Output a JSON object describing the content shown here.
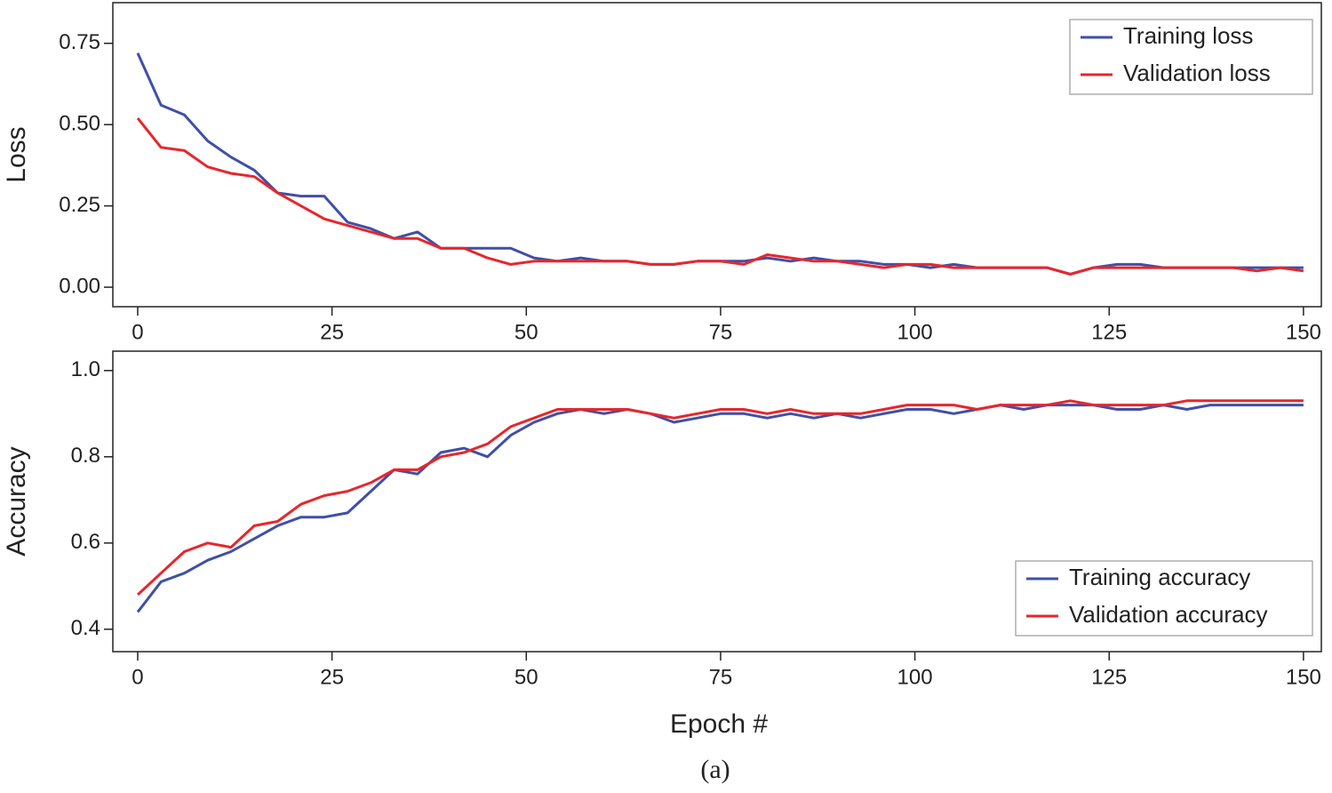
{
  "chart_data": [
    {
      "type": "line",
      "ylabel": "Loss",
      "legend": "upper right",
      "grid": false,
      "x": [
        0,
        3,
        6,
        9,
        12,
        15,
        18,
        21,
        24,
        27,
        30,
        33,
        36,
        39,
        42,
        45,
        48,
        51,
        54,
        57,
        60,
        63,
        66,
        69,
        72,
        75,
        78,
        81,
        84,
        87,
        90,
        93,
        96,
        99,
        102,
        105,
        108,
        111,
        114,
        117,
        120,
        123,
        126,
        129,
        132,
        135,
        138,
        141,
        144,
        147,
        150
      ],
      "xlim": [
        -3.2,
        152.3
      ],
      "xticks": [
        0,
        25,
        50,
        75,
        100,
        125,
        150
      ],
      "ylim": [
        -0.06,
        0.875
      ],
      "yticks": [
        {
          "value": 0,
          "label": "0.00"
        },
        0.25,
        {
          "value": 0.5,
          "label": "0.50"
        },
        0.75
      ],
      "series": [
        {
          "name": "Training loss",
          "color": "#3f4fa8",
          "values": [
            0.72,
            0.56,
            0.53,
            0.45,
            0.4,
            0.36,
            0.29,
            0.28,
            0.28,
            0.2,
            0.18,
            0.15,
            0.17,
            0.12,
            0.12,
            0.12,
            0.12,
            0.09,
            0.08,
            0.09,
            0.08,
            0.08,
            0.07,
            0.07,
            0.08,
            0.08,
            0.08,
            0.09,
            0.08,
            0.09,
            0.08,
            0.08,
            0.07,
            0.07,
            0.06,
            0.07,
            0.06,
            0.06,
            0.06,
            0.06,
            0.04,
            0.06,
            0.07,
            0.07,
            0.06,
            0.06,
            0.06,
            0.06,
            0.06,
            0.06,
            0.06
          ]
        },
        {
          "name": "Validation loss",
          "color": "#e8262b",
          "values": [
            0.52,
            0.43,
            0.42,
            0.37,
            0.35,
            0.34,
            0.29,
            0.25,
            0.21,
            0.19,
            0.17,
            0.15,
            0.15,
            0.12,
            0.12,
            0.09,
            0.07,
            0.08,
            0.08,
            0.08,
            0.08,
            0.08,
            0.07,
            0.07,
            0.08,
            0.08,
            0.07,
            0.1,
            0.09,
            0.08,
            0.08,
            0.07,
            0.06,
            0.07,
            0.07,
            0.06,
            0.06,
            0.06,
            0.06,
            0.06,
            0.04,
            0.06,
            0.06,
            0.06,
            0.06,
            0.06,
            0.06,
            0.06,
            0.05,
            0.06,
            0.05
          ]
        }
      ]
    },
    {
      "type": "line",
      "ylabel": "Accuracy",
      "xlabel": "Epoch #",
      "legend": "lower right",
      "grid": false,
      "x": [
        0,
        3,
        6,
        9,
        12,
        15,
        18,
        21,
        24,
        27,
        30,
        33,
        36,
        39,
        42,
        45,
        48,
        51,
        54,
        57,
        60,
        63,
        66,
        69,
        72,
        75,
        78,
        81,
        84,
        87,
        90,
        93,
        96,
        99,
        102,
        105,
        108,
        111,
        114,
        117,
        120,
        123,
        126,
        129,
        132,
        135,
        138,
        141,
        144,
        147,
        150
      ],
      "xlim": [
        -3.2,
        152.3
      ],
      "xticks": [
        0,
        25,
        50,
        75,
        100,
        125,
        150
      ],
      "ylim": [
        0.348,
        1.045
      ],
      "yticks": [
        0.4,
        0.6,
        0.8,
        {
          "value": 1,
          "label": "1.0"
        }
      ],
      "series": [
        {
          "name": "Training accuracy",
          "color": "#3f4fa8",
          "values": [
            0.44,
            0.51,
            0.53,
            0.56,
            0.58,
            0.61,
            0.64,
            0.66,
            0.66,
            0.67,
            0.72,
            0.77,
            0.76,
            0.81,
            0.82,
            0.8,
            0.85,
            0.88,
            0.9,
            0.91,
            0.9,
            0.91,
            0.9,
            0.88,
            0.89,
            0.9,
            0.9,
            0.89,
            0.9,
            0.89,
            0.9,
            0.89,
            0.9,
            0.91,
            0.91,
            0.9,
            0.91,
            0.92,
            0.91,
            0.92,
            0.92,
            0.92,
            0.91,
            0.91,
            0.92,
            0.91,
            0.92,
            0.92,
            0.92,
            0.92,
            0.92
          ]
        },
        {
          "name": "Validation accuracy",
          "color": "#e8262b",
          "values": [
            0.48,
            0.53,
            0.58,
            0.6,
            0.59,
            0.64,
            0.65,
            0.69,
            0.71,
            0.72,
            0.74,
            0.77,
            0.77,
            0.8,
            0.81,
            0.83,
            0.87,
            0.89,
            0.91,
            0.91,
            0.91,
            0.91,
            0.9,
            0.89,
            0.9,
            0.91,
            0.91,
            0.9,
            0.91,
            0.9,
            0.9,
            0.9,
            0.91,
            0.92,
            0.92,
            0.92,
            0.91,
            0.92,
            0.92,
            0.92,
            0.93,
            0.92,
            0.92,
            0.92,
            0.92,
            0.93,
            0.93,
            0.93,
            0.93,
            0.93,
            0.93
          ]
        }
      ]
    }
  ],
  "caption": "(a)"
}
